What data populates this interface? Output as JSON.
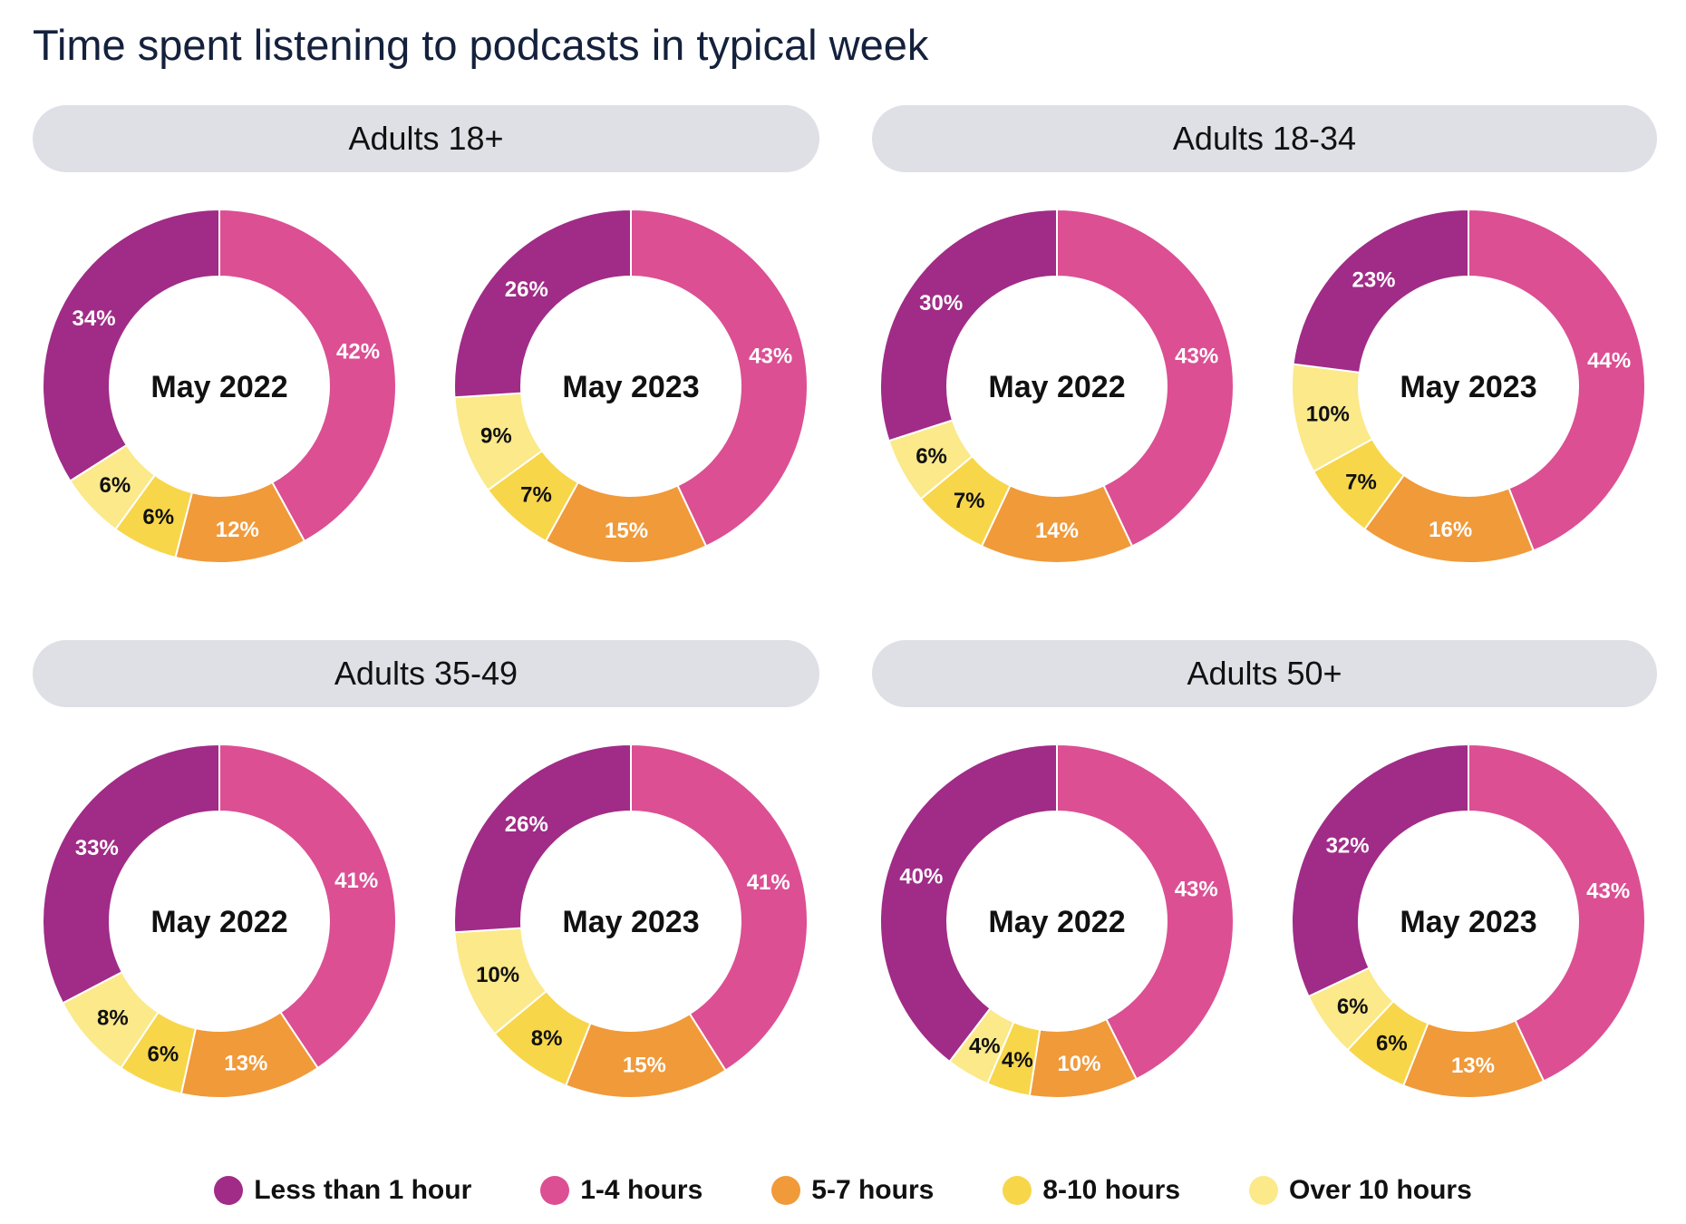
{
  "title": "Time spent listening to podcasts in typical week",
  "chart_data": {
    "type": "donut",
    "title": "Time spent listening to podcasts in typical week",
    "categories": [
      "Less than 1 hour",
      "1-4 hours",
      "5-7 hours",
      "8-10 hours",
      "Over 10 hours"
    ],
    "colors": [
      "#A02C87",
      "#DC4F93",
      "#F09A3A",
      "#F7D64A",
      "#FBE98A"
    ],
    "unit": "%",
    "legend_position": "bottom",
    "panels": [
      {
        "name": "Adults 18+",
        "charts": [
          {
            "label": "May 2022",
            "values": [
              34,
              42,
              12,
              6,
              6
            ]
          },
          {
            "label": "May 2023",
            "values": [
              26,
              43,
              15,
              7,
              9
            ]
          }
        ]
      },
      {
        "name": "Adults 18-34",
        "charts": [
          {
            "label": "May 2022",
            "values": [
              30,
              43,
              14,
              7,
              6
            ]
          },
          {
            "label": "May 2023",
            "values": [
              23,
              44,
              16,
              7,
              10
            ]
          }
        ]
      },
      {
        "name": "Adults 35-49",
        "charts": [
          {
            "label": "May 2022",
            "values": [
              33,
              41,
              13,
              6,
              8
            ]
          },
          {
            "label": "May 2023",
            "values": [
              26,
              41,
              15,
              8,
              10
            ]
          }
        ]
      },
      {
        "name": "Adults 50+",
        "charts": [
          {
            "label": "May 2022",
            "values": [
              40,
              43,
              10,
              4,
              4
            ]
          },
          {
            "label": "May 2023",
            "values": [
              32,
              43,
              13,
              6,
              6
            ]
          }
        ]
      }
    ]
  }
}
